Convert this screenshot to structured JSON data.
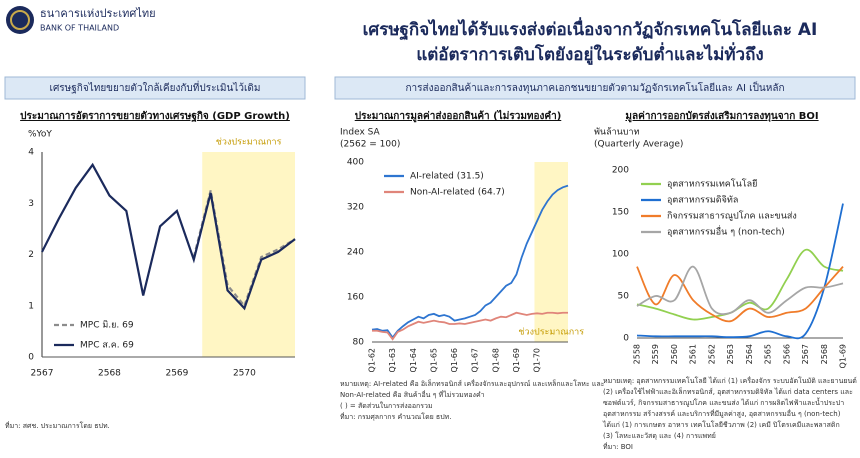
{
  "header": {
    "bank_name_th": "ธนาคารแห่งประเทศไทย",
    "bank_name_en": "BANK OF THAILAND",
    "title": [
      "เศรษฐกิจไทยได้รับแรงส่งต่อเนื่องจากวัฏจักรเทคโนโลยีและ AI",
      "แต่อัตราการเติบโตยังอยู่ในระดับต่ำและไม่ทั่วถึง"
    ]
  },
  "panels": [
    "เศรษฐกิจไทยขยายตัวใกล้เคียงกับที่ประเมินไว้เดิม",
    "การส่งออกสินค้าและการลงทุนภาคเอกชนขยายตัวตามวัฏจักรเทคโนโลยีและ AI เป็นหลัก"
  ],
  "chart_data": [
    {
      "type": "line",
      "title": "ประมาณการอัตราการขยายตัวทางเศรษฐกิจ (GDP Growth)",
      "ylabel": [
        "%YoY"
      ],
      "categories": [
        "2567",
        null,
        null,
        null,
        "2568",
        null,
        null,
        null,
        "2569",
        null,
        null,
        null,
        "2570",
        null,
        null,
        null
      ],
      "series": [
        {
          "name": "MPC มิ.ย. 69",
          "color": "#8c8c8c",
          "dash": true,
          "values": [
            null,
            null,
            null,
            null,
            null,
            null,
            null,
            null,
            null,
            1.95,
            3.25,
            1.4,
            1.0,
            1.95,
            2.1,
            2.3
          ]
        },
        {
          "name": "MPC ส.ค. 69",
          "color": "#1b2a5c",
          "dash": false,
          "values": [
            2.05,
            2.7,
            3.3,
            3.75,
            3.15,
            2.85,
            1.2,
            2.55,
            2.85,
            1.9,
            3.2,
            1.3,
            0.95,
            1.9,
            2.05,
            2.3
          ]
        }
      ],
      "ylim": [
        0,
        4
      ],
      "yticks": [
        0,
        1,
        2,
        3,
        4
      ],
      "grid": false,
      "legend": "lower left",
      "smooth": false,
      "forecast": {
        "label": "ช่วงประมาณการ",
        "start": 10,
        "label_position": "top"
      },
      "notes": [
        "ที่มา: สศช. ประมาณการโดย ธปท."
      ]
    },
    {
      "type": "line",
      "title": "ประมาณการมูลค่าส่งออกสินค้า (ไม่รวมทองคำ)",
      "ylabel": [
        "Index SA",
        "(2562 = 100)"
      ],
      "categories": [
        "Q1-62",
        null,
        null,
        null,
        "Q1-63",
        null,
        null,
        null,
        "Q1-64",
        null,
        null,
        null,
        "Q1-65",
        null,
        null,
        null,
        "Q1-66",
        null,
        null,
        null,
        "Q1-67",
        null,
        null,
        null,
        "Q1-68",
        null,
        null,
        null,
        "Q1-69",
        null,
        null,
        null,
        "Q1-70",
        null,
        null,
        null,
        null,
        null,
        null
      ],
      "series": [
        {
          "name": "AI-related (31.5)",
          "color": "#2e75d0",
          "dash": false,
          "values": [
            102,
            103,
            100,
            101,
            88,
            100,
            108,
            115,
            120,
            125,
            122,
            128,
            130,
            126,
            128,
            125,
            118,
            120,
            122,
            125,
            128,
            135,
            145,
            150,
            160,
            170,
            180,
            185,
            200,
            230,
            255,
            275,
            295,
            315,
            330,
            342,
            350,
            355,
            358
          ]
        },
        {
          "name": "Non-AI-related (64.7)",
          "color": "#e0857a",
          "dash": false,
          "values": [
            100,
            100,
            98,
            97,
            85,
            98,
            102,
            108,
            112,
            116,
            114,
            116,
            118,
            116,
            115,
            112,
            112,
            113,
            112,
            114,
            116,
            118,
            120,
            118,
            122,
            125,
            124,
            128,
            132,
            130,
            128,
            130,
            131,
            130,
            132,
            132,
            131,
            132,
            132
          ]
        }
      ],
      "ylim": [
        80,
        400
      ],
      "yticks": [
        80,
        160,
        240,
        320,
        400
      ],
      "grid": false,
      "legend": "upper left",
      "smooth": false,
      "forecast": {
        "label": "ช่วงประมาณการ",
        "start": 32,
        "label_position": "bottom"
      },
      "notes": [
        "หมายเหตุ: AI-related คือ อิเล็กทรอนิกส์ เครื่องจักรและอุปกรณ์ และเหล็กและโลหะ และ",
        "Non-AI-related คือ สินค้าอื่น ๆ ที่ไม่รวมทองคำ",
        "( ) = สัดส่วนในการส่งออกรวม",
        "ที่มา: กรมศุลกากร คำนวณโดย ธปท."
      ]
    },
    {
      "type": "line",
      "title": "มูลค่าการออกบัตรส่งเสริมการลงทุนจาก BOI",
      "ylabel": [
        "พันล้านบาท",
        "(Quarterly Average)"
      ],
      "categories": [
        "2558",
        "2559",
        "2560",
        "2561",
        "2562",
        "2563",
        "2564",
        "2565",
        "2566",
        "2567",
        "2568",
        "Q1-69"
      ],
      "series": [
        {
          "name": "อุตสาหกรรมเทคโนโลยี",
          "color": "#92d050",
          "dash": false,
          "values": [
            40,
            35,
            28,
            22,
            25,
            30,
            42,
            35,
            70,
            105,
            85,
            80
          ]
        },
        {
          "name": "อุตสาหกรรมดิจิทัล",
          "color": "#1f6fd1",
          "dash": false,
          "values": [
            3,
            2,
            2,
            2,
            2,
            1,
            2,
            8,
            2,
            5,
            60,
            160
          ]
        },
        {
          "name": "กิจกรรมสาธารณูปโภค และขนส่ง",
          "color": "#f07c2a",
          "dash": false,
          "values": [
            85,
            40,
            75,
            45,
            28,
            20,
            35,
            25,
            30,
            35,
            60,
            85
          ]
        },
        {
          "name": "อุตสาหกรรมอื่น ๆ (non-tech)",
          "color": "#a6a6a6",
          "dash": false,
          "values": [
            38,
            50,
            45,
            85,
            35,
            30,
            45,
            30,
            45,
            60,
            60,
            65
          ]
        }
      ],
      "ylim": [
        0,
        200
      ],
      "yticks": [
        0,
        50,
        100,
        150,
        200
      ],
      "grid": false,
      "legend": "upper left",
      "smooth": true,
      "notes": [
        "หมายเหตุ: อุตสาหกรรมเทคโนโลยี ได้แก่ (1) เครื่องจักร ระบบอัตโนมัติ และยานยนต์",
        "(2) เครื่องใช้ไฟฟ้าและอิเล็กทรอนิกส์, อุตสาหกรรมดิจิทัล ได้แก่ data centers และ",
        "ซอฟต์แวร์, กิจกรรมสาธารณูปโภค และขนส่ง ได้แก่ การผลิตไฟฟ้าและน้ำประปา",
        "อุตสาหกรรม สร้างสรรค์ และบริการที่มีมูลค่าสูง, อุตสาหกรรมอื่น ๆ (non-tech)",
        "ได้แก่ (1) การเกษตร อาหาร เทคโนโลยีชีวภาพ (2) เคมี ปิโตรเคมีและพลาสติก",
        "(3) โลหะและวัสดุ และ (4) การแพทย์",
        "ที่มา: BOI"
      ]
    }
  ]
}
